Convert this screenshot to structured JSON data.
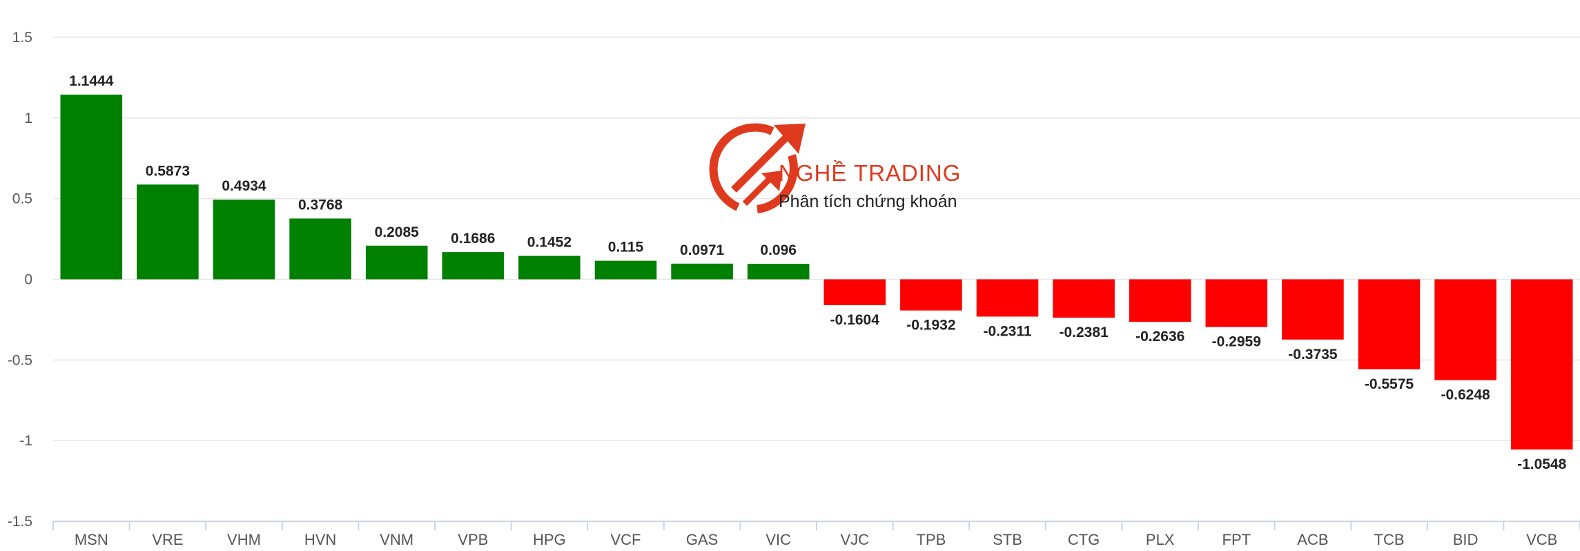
{
  "chart_data": {
    "type": "bar",
    "categories": [
      "MSN",
      "VRE",
      "VHM",
      "HVN",
      "VNM",
      "VPB",
      "HPG",
      "VCF",
      "GAS",
      "VIC",
      "VJC",
      "TPB",
      "STB",
      "CTG",
      "PLX",
      "FPT",
      "ACB",
      "TCB",
      "BID",
      "VCB"
    ],
    "values": [
      1.1444,
      0.5873,
      0.4934,
      0.3768,
      0.2085,
      0.1686,
      0.1452,
      0.115,
      0.0971,
      0.096,
      -0.1604,
      -0.1932,
      -0.2311,
      -0.2381,
      -0.2636,
      -0.2959,
      -0.3735,
      -0.5575,
      -0.6248,
      -1.0548
    ],
    "data_labels": [
      "1.1444",
      "0.5873",
      "0.4934",
      "0.3768",
      "0.2085",
      "0.1686",
      "0.1452",
      "0.115",
      "0.0971",
      "0.096",
      "-0.1604",
      "-0.1932",
      "-0.2311",
      "-0.2381",
      "-0.2636",
      "-0.2959",
      "-0.3735",
      "-0.5575",
      "-0.6248",
      "-1.0548"
    ],
    "ylim": [
      -1.5,
      1.5
    ],
    "yticks": [
      1.5,
      1,
      0.5,
      0,
      -0.5,
      -1,
      -1.5
    ],
    "ytick_labels": [
      "1.5",
      "1",
      "0.5",
      "0",
      "-0.5",
      "-1",
      "-1.5"
    ],
    "grid": true,
    "colors": {
      "positive": "#008000",
      "negative": "#ff0000"
    }
  },
  "watermark": {
    "title": "NGHỀ TRADING",
    "subtitle": "Phân tích chứng khoán",
    "color": "#e03a1e"
  }
}
